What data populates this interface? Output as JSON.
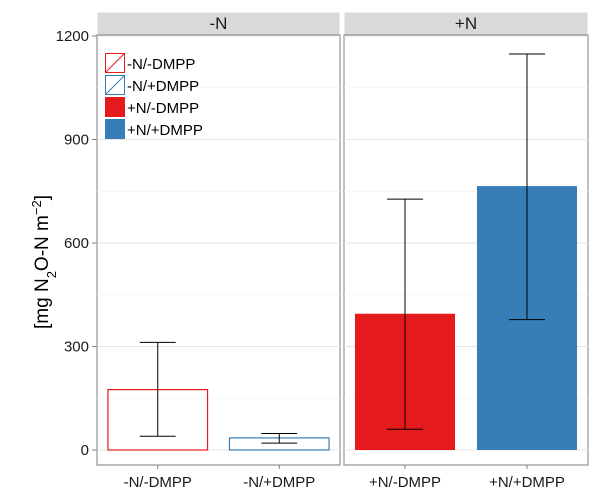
{
  "chart_data": {
    "type": "bar",
    "ylabel_parts": {
      "open": "[mg N",
      "sub": "2",
      "mid": "O-N m",
      "sup": "−2",
      "close": "]"
    },
    "ylim": [
      0,
      1200
    ],
    "yticks": [
      0,
      300,
      600,
      900,
      1200
    ],
    "ytick_labels": [
      "0",
      "300",
      "600",
      "900",
      "1200"
    ],
    "grid": true,
    "legend_position": "top-left",
    "legend": [
      {
        "label": "-N/-DMPP",
        "color": "#e41a1c",
        "style": "hatched"
      },
      {
        "label": "-N/+DMPP",
        "color": "#377eb8",
        "style": "hatched"
      },
      {
        "label": "+N/-DMPP",
        "color": "#e41a1c",
        "style": "filled"
      },
      {
        "label": "+N/+DMPP",
        "color": "#377eb8",
        "style": "filled"
      }
    ],
    "panels": [
      {
        "strip": "-N",
        "bars": [
          {
            "category": "-N/-DMPP",
            "value": 175,
            "err_low": 40,
            "err_high": 312,
            "color": "#e41a1c",
            "style": "outline"
          },
          {
            "category": "-N/+DMPP",
            "value": 35,
            "err_low": 20,
            "err_high": 48,
            "color": "#377eb8",
            "style": "outline"
          }
        ]
      },
      {
        "strip": "+N",
        "bars": [
          {
            "category": "+N/-DMPP",
            "value": 395,
            "err_low": 60,
            "err_high": 727,
            "color": "#e41a1c",
            "style": "filled"
          },
          {
            "category": "+N/+DMPP",
            "value": 765,
            "err_low": 378,
            "err_high": 1148,
            "color": "#377eb8",
            "style": "filled"
          }
        ]
      }
    ]
  }
}
